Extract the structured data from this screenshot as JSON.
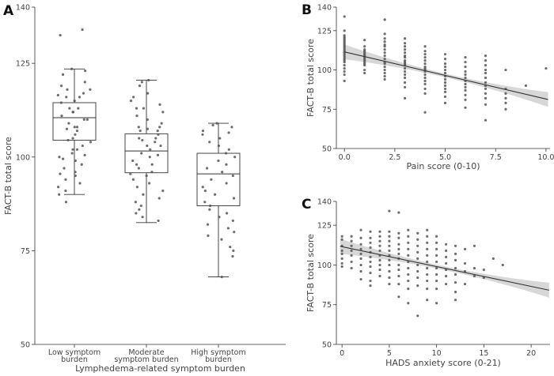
{
  "chart_data": [
    {
      "panel": "A",
      "type": "box",
      "xlabel": "Lymphedema-related symptom burden",
      "ylabel": "FACT-B total score",
      "ylim": [
        50,
        140
      ],
      "yticks": [
        50,
        75,
        100,
        125,
        140
      ],
      "categories": [
        [
          "Low symptom",
          "burden"
        ],
        [
          "Moderate",
          "symptom burden"
        ],
        [
          "High symptom",
          "burden"
        ]
      ],
      "boxes": [
        {
          "whisker_low": 90,
          "q1": 104.5,
          "median": 110.5,
          "q3": 114.5,
          "whisker_high": 123.5
        },
        {
          "whisker_low": 82.5,
          "q1": 95.8,
          "median": 101.6,
          "q3": 106.2,
          "whisker_high": 120.5
        },
        {
          "whisker_low": 68,
          "q1": 87,
          "median": 95.5,
          "q3": 101,
          "whisker_high": 109
        }
      ],
      "points": [
        [
          134,
          132.5,
          123.5,
          123,
          122,
          120,
          119,
          118,
          118,
          117,
          116.5,
          116,
          116,
          115,
          114.5,
          113,
          113,
          112,
          112,
          111,
          110,
          110,
          109,
          108,
          108,
          107.5,
          107,
          106,
          105,
          104.5,
          104,
          103,
          102,
          102,
          101,
          100.5,
          100,
          99.5,
          99,
          98,
          97,
          96,
          95.5,
          95,
          94,
          93,
          92,
          91,
          90,
          88
        ],
        [
          120.5,
          120,
          119,
          117,
          116,
          115,
          114,
          113,
          113,
          112,
          111,
          110,
          109,
          108,
          108,
          107.5,
          107,
          107,
          106,
          105,
          105,
          104.5,
          104,
          103,
          103,
          102,
          101,
          100.5,
          100,
          99,
          98,
          98,
          97,
          96,
          95.5,
          95,
          94,
          93,
          92,
          91,
          90,
          89,
          88,
          87,
          86,
          85,
          84,
          83
        ],
        [
          109,
          108.5,
          108,
          107,
          106.5,
          106,
          105,
          104,
          103,
          102,
          101,
          100,
          99,
          98,
          97,
          96,
          95,
          94,
          93,
          92,
          91,
          90,
          89,
          88,
          87,
          86,
          85,
          84,
          83,
          82,
          81,
          80,
          79,
          78,
          76,
          75,
          73.5,
          68
        ]
      ]
    },
    {
      "panel": "B",
      "type": "scatter",
      "xlabel": "Pain score (0-10)",
      "ylabel": "FACT-B total score",
      "xlim": [
        -0.4,
        10.2
      ],
      "ylim": [
        50,
        140
      ],
      "xticks": [
        "0.0",
        "2.5",
        "5.0",
        "7.5",
        "10.0"
      ],
      "yticks": [
        50,
        75,
        100,
        125,
        140
      ],
      "regression": {
        "intercept": 111.5,
        "slope": -3.0
      },
      "points": [
        [
          0,
          134
        ],
        [
          0,
          125
        ],
        [
          0,
          122
        ],
        [
          0,
          121
        ],
        [
          0,
          120
        ],
        [
          0,
          119
        ],
        [
          0,
          118
        ],
        [
          0,
          117
        ],
        [
          0,
          116
        ],
        [
          0,
          115
        ],
        [
          0,
          114
        ],
        [
          0,
          113
        ],
        [
          0,
          112
        ],
        [
          0,
          111
        ],
        [
          0,
          110
        ],
        [
          0,
          109
        ],
        [
          0,
          108
        ],
        [
          0,
          107
        ],
        [
          0,
          106
        ],
        [
          0,
          105
        ],
        [
          0,
          103
        ],
        [
          0,
          101
        ],
        [
          0,
          99
        ],
        [
          0,
          97
        ],
        [
          0,
          93
        ],
        [
          1,
          119
        ],
        [
          1,
          115
        ],
        [
          1,
          113
        ],
        [
          1,
          112
        ],
        [
          1,
          111
        ],
        [
          1,
          110
        ],
        [
          1,
          109
        ],
        [
          1,
          108
        ],
        [
          1,
          107
        ],
        [
          1,
          106
        ],
        [
          1,
          105
        ],
        [
          1,
          104
        ],
        [
          1,
          103
        ],
        [
          1,
          100
        ],
        [
          1,
          98
        ],
        [
          2,
          132
        ],
        [
          2,
          123
        ],
        [
          2,
          120
        ],
        [
          2,
          118
        ],
        [
          2,
          116
        ],
        [
          2,
          115
        ],
        [
          2,
          113
        ],
        [
          2,
          111
        ],
        [
          2,
          109
        ],
        [
          2,
          107
        ],
        [
          2,
          105
        ],
        [
          2,
          104
        ],
        [
          2,
          102
        ],
        [
          2,
          100
        ],
        [
          2,
          98
        ],
        [
          2,
          96
        ],
        [
          2,
          94
        ],
        [
          3,
          120
        ],
        [
          3,
          117
        ],
        [
          3,
          115
        ],
        [
          3,
          113
        ],
        [
          3,
          111
        ],
        [
          3,
          109
        ],
        [
          3,
          108
        ],
        [
          3,
          106
        ],
        [
          3,
          105
        ],
        [
          3,
          104
        ],
        [
          3,
          103
        ],
        [
          3,
          101
        ],
        [
          3,
          99
        ],
        [
          3,
          97
        ],
        [
          3,
          95
        ],
        [
          3,
          92
        ],
        [
          3,
          89
        ],
        [
          3,
          82
        ],
        [
          4,
          115
        ],
        [
          4,
          112
        ],
        [
          4,
          110
        ],
        [
          4,
          108
        ],
        [
          4,
          106
        ],
        [
          4,
          104
        ],
        [
          4,
          102
        ],
        [
          4,
          101
        ],
        [
          4,
          100
        ],
        [
          4,
          99
        ],
        [
          4,
          97
        ],
        [
          4,
          95
        ],
        [
          4,
          93
        ],
        [
          4,
          91
        ],
        [
          4,
          88
        ],
        [
          4,
          85
        ],
        [
          4,
          73
        ],
        [
          5,
          110
        ],
        [
          5,
          107
        ],
        [
          5,
          104
        ],
        [
          5,
          102
        ],
        [
          5,
          100
        ],
        [
          5,
          98
        ],
        [
          5,
          96
        ],
        [
          5,
          94
        ],
        [
          5,
          92
        ],
        [
          5,
          90
        ],
        [
          5,
          88
        ],
        [
          5,
          86
        ],
        [
          5,
          83
        ],
        [
          5,
          79
        ],
        [
          6,
          108
        ],
        [
          6,
          105
        ],
        [
          6,
          102
        ],
        [
          6,
          99
        ],
        [
          6,
          97
        ],
        [
          6,
          95
        ],
        [
          6,
          93
        ],
        [
          6,
          91
        ],
        [
          6,
          89
        ],
        [
          6,
          87
        ],
        [
          6,
          84
        ],
        [
          6,
          81
        ],
        [
          6,
          76
        ],
        [
          7,
          109
        ],
        [
          7,
          106
        ],
        [
          7,
          103
        ],
        [
          7,
          100
        ],
        [
          7,
          98
        ],
        [
          7,
          95
        ],
        [
          7,
          92
        ],
        [
          7,
          90
        ],
        [
          7,
          88
        ],
        [
          7,
          85
        ],
        [
          7,
          82
        ],
        [
          7,
          78
        ],
        [
          7,
          68
        ],
        [
          8,
          100
        ],
        [
          8,
          88
        ],
        [
          8,
          85
        ],
        [
          8,
          82
        ],
        [
          8,
          79
        ],
        [
          8,
          75
        ],
        [
          9,
          90
        ],
        [
          10,
          101
        ]
      ]
    },
    {
      "panel": "C",
      "type": "scatter",
      "xlabel": "HADS anxiety score (0-21)",
      "ylabel": "FACT-B total score",
      "xlim": [
        -0.6,
        22
      ],
      "ylim": [
        50,
        140
      ],
      "xticks": [
        "0",
        "5",
        "10",
        "15",
        "20"
      ],
      "yticks": [
        50,
        75,
        100,
        125,
        140
      ],
      "regression": {
        "intercept": 111.5,
        "slope": -1.25
      },
      "points": [
        [
          0,
          118
        ],
        [
          0,
          116
        ],
        [
          0,
          112
        ],
        [
          0,
          109
        ],
        [
          0,
          107
        ],
        [
          0,
          104
        ],
        [
          0,
          101
        ],
        [
          0,
          99
        ],
        [
          1,
          118
        ],
        [
          1,
          115
        ],
        [
          1,
          112
        ],
        [
          1,
          109
        ],
        [
          1,
          106
        ],
        [
          1,
          102
        ],
        [
          1,
          98
        ],
        [
          2,
          122
        ],
        [
          2,
          117
        ],
        [
          2,
          113
        ],
        [
          2,
          110
        ],
        [
          2,
          107
        ],
        [
          2,
          104
        ],
        [
          2,
          100
        ],
        [
          2,
          96
        ],
        [
          2,
          91
        ],
        [
          3,
          121
        ],
        [
          3,
          117
        ],
        [
          3,
          114
        ],
        [
          3,
          111
        ],
        [
          3,
          108
        ],
        [
          3,
          105
        ],
        [
          3,
          102
        ],
        [
          3,
          99
        ],
        [
          3,
          95
        ],
        [
          3,
          90
        ],
        [
          3,
          87
        ],
        [
          4,
          121
        ],
        [
          4,
          118
        ],
        [
          4,
          115
        ],
        [
          4,
          112
        ],
        [
          4,
          109
        ],
        [
          4,
          106
        ],
        [
          4,
          103
        ],
        [
          4,
          100
        ],
        [
          4,
          97
        ],
        [
          4,
          93
        ],
        [
          5,
          134
        ],
        [
          5,
          121
        ],
        [
          5,
          118
        ],
        [
          5,
          115
        ],
        [
          5,
          112
        ],
        [
          5,
          109
        ],
        [
          5,
          106
        ],
        [
          5,
          103
        ],
        [
          5,
          100
        ],
        [
          5,
          96
        ],
        [
          5,
          92
        ],
        [
          5,
          88
        ],
        [
          6,
          133
        ],
        [
          6,
          120
        ],
        [
          6,
          117
        ],
        [
          6,
          113
        ],
        [
          6,
          110
        ],
        [
          6,
          107
        ],
        [
          6,
          104
        ],
        [
          6,
          100
        ],
        [
          6,
          97
        ],
        [
          6,
          93
        ],
        [
          6,
          88
        ],
        [
          6,
          80
        ],
        [
          7,
          122
        ],
        [
          7,
          118
        ],
        [
          7,
          114
        ],
        [
          7,
          110
        ],
        [
          7,
          106
        ],
        [
          7,
          102
        ],
        [
          7,
          98
        ],
        [
          7,
          94
        ],
        [
          7,
          90
        ],
        [
          7,
          85
        ],
        [
          7,
          76
        ],
        [
          8,
          120
        ],
        [
          8,
          116
        ],
        [
          8,
          112
        ],
        [
          8,
          108
        ],
        [
          8,
          104
        ],
        [
          8,
          100
        ],
        [
          8,
          96
        ],
        [
          8,
          92
        ],
        [
          8,
          87
        ],
        [
          8,
          68
        ],
        [
          9,
          122
        ],
        [
          9,
          118
        ],
        [
          9,
          114
        ],
        [
          9,
          110
        ],
        [
          9,
          106
        ],
        [
          9,
          102
        ],
        [
          9,
          98
        ],
        [
          9,
          94
        ],
        [
          9,
          90
        ],
        [
          9,
          85
        ],
        [
          9,
          78
        ],
        [
          10,
          118
        ],
        [
          10,
          114
        ],
        [
          10,
          110
        ],
        [
          10,
          106
        ],
        [
          10,
          102
        ],
        [
          10,
          98
        ],
        [
          10,
          94
        ],
        [
          10,
          90
        ],
        [
          10,
          85
        ],
        [
          10,
          76
        ],
        [
          11,
          113
        ],
        [
          11,
          109
        ],
        [
          11,
          105
        ],
        [
          11,
          101
        ],
        [
          11,
          97
        ],
        [
          11,
          93
        ],
        [
          11,
          88
        ],
        [
          12,
          112
        ],
        [
          12,
          107
        ],
        [
          12,
          103
        ],
        [
          12,
          98
        ],
        [
          12,
          94
        ],
        [
          12,
          89
        ],
        [
          12,
          83
        ],
        [
          12,
          78
        ],
        [
          13,
          110
        ],
        [
          13,
          101
        ],
        [
          13,
          96
        ],
        [
          13,
          88
        ],
        [
          14,
          112
        ],
        [
          14,
          98
        ],
        [
          14,
          93
        ],
        [
          15,
          97
        ],
        [
          15,
          92
        ],
        [
          16,
          104
        ],
        [
          17,
          100
        ]
      ]
    }
  ]
}
